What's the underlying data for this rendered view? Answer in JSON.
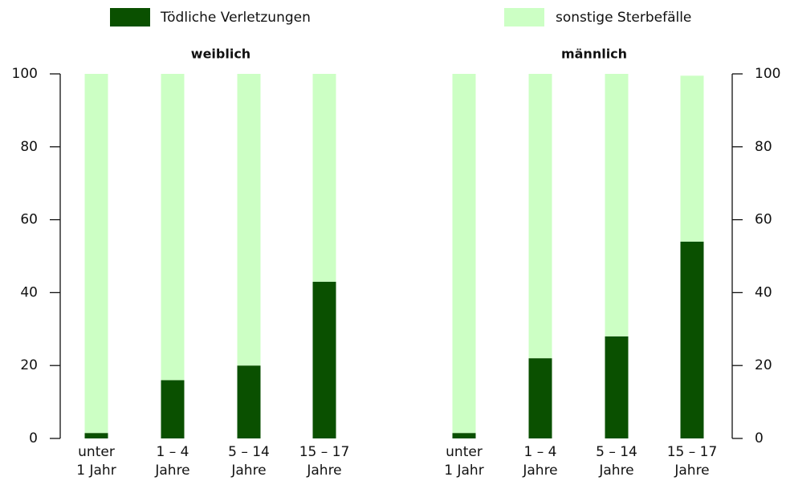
{
  "chart_data": [
    {
      "type": "bar",
      "stacked": true,
      "title": "weiblich",
      "yaxis_side": "left",
      "categories": [
        [
          "unter",
          "1 Jahr"
        ],
        [
          "1 – 4",
          "Jahre"
        ],
        [
          "5 – 14",
          "Jahre"
        ],
        [
          "15 – 17",
          "Jahre"
        ]
      ],
      "series": [
        {
          "name": "Tödliche Verletzungen",
          "color": "#0a5000",
          "values": [
            1.5,
            16,
            20,
            43
          ]
        },
        {
          "name": "sonstige Sterbefälle",
          "color": "#ccffc4",
          "values": [
            98.5,
            84,
            80,
            57
          ]
        }
      ],
      "ylim": [
        0,
        100
      ],
      "yticks": [
        0,
        20,
        40,
        60,
        80,
        100
      ]
    },
    {
      "type": "bar",
      "stacked": true,
      "title": "männlich",
      "yaxis_side": "right",
      "categories": [
        [
          "unter",
          "1 Jahr"
        ],
        [
          "1 – 4",
          "Jahre"
        ],
        [
          "5 – 14",
          "Jahre"
        ],
        [
          "15 – 17",
          "Jahre"
        ]
      ],
      "series": [
        {
          "color": "#0a5000",
          "values": [
            1.5,
            22,
            28,
            54
          ]
        },
        {
          "color": "#ccffc4",
          "values": [
            98.5,
            78,
            72,
            45.5
          ]
        }
      ],
      "ylim": [
        0,
        100
      ],
      "yticks": [
        0,
        20,
        40,
        60,
        80,
        100
      ]
    }
  ]
}
